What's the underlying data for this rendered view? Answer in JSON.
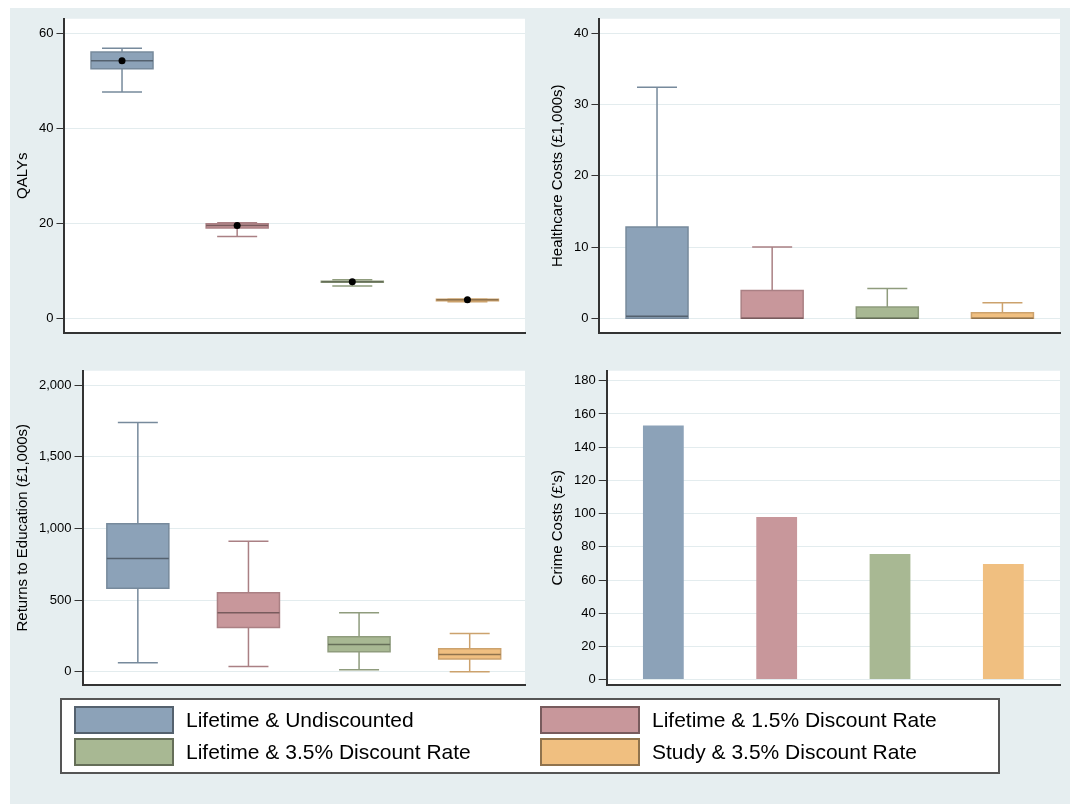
{
  "chart_data": [
    {
      "type": "box",
      "ylabel": "QALYs",
      "categories": [
        null,
        null,
        null,
        null
      ],
      "ylim": [
        -3,
        63
      ],
      "yticks": [
        0,
        20,
        40,
        60
      ],
      "grid": "y",
      "legend": "bottom",
      "marker": "circle",
      "series": [
        {
          "name": "Lifetime & Undiscounted",
          "color": "#8ca2b8",
          "boxes": [
            {
              "low": 47.6,
              "q1": 52.5,
              "median": 54.2,
              "q3": 56.0,
              "high": 56.8,
              "mean": 54.2
            },
            null,
            null,
            null
          ]
        },
        {
          "name": "Lifetime & 1.5% Discount Rate",
          "color": "#c8979b",
          "boxes": [
            null,
            {
              "low": 17.2,
              "q1": 19.0,
              "median": 19.5,
              "q3": 19.9,
              "high": 20.1,
              "mean": 19.5
            },
            null,
            null
          ]
        },
        {
          "name": "Lifetime & 3.5% Discount Rate",
          "color": "#a8b893",
          "boxes": [
            null,
            null,
            {
              "low": 6.8,
              "q1": 7.6,
              "median": 7.7,
              "q3": 7.8,
              "high": 8.1,
              "mean": 7.7
            },
            null
          ]
        },
        {
          "name": "Study & 3.5% Discount Rate",
          "color": "#f0bf80",
          "boxes": [
            null,
            null,
            null,
            {
              "low": 3.5,
              "q1": 3.7,
              "median": 3.9,
              "q3": 4.0,
              "high": 4.0,
              "mean": 3.9
            }
          ]
        }
      ]
    },
    {
      "type": "box",
      "ylabel": "Healthcare Costs (£1,000s)",
      "categories": [
        null,
        null,
        null,
        null
      ],
      "ylim": [
        -2,
        42
      ],
      "yticks": [
        0,
        10,
        20,
        30,
        40
      ],
      "grid": "y",
      "series": [
        {
          "color": "#8ca2b8",
          "boxes": [
            {
              "low": 0,
              "q1": 0,
              "median": 0.3,
              "q3": 12.8,
              "high": 32.4
            },
            null,
            null,
            null
          ]
        },
        {
          "color": "#c8979b",
          "boxes": [
            null,
            {
              "low": 0,
              "q1": 0,
              "median": 0,
              "q3": 3.9,
              "high": 10.0
            },
            null,
            null
          ]
        },
        {
          "color": "#a8b893",
          "boxes": [
            null,
            null,
            {
              "low": 0,
              "q1": 0,
              "median": 0,
              "q3": 1.6,
              "high": 4.2
            },
            null
          ]
        },
        {
          "color": "#f0bf80",
          "boxes": [
            null,
            null,
            null,
            {
              "low": 0,
              "q1": 0,
              "median": 0,
              "q3": 0.8,
              "high": 2.2
            }
          ]
        }
      ]
    },
    {
      "type": "box",
      "ylabel": "Returns to Education (£1,000s)",
      "categories": [
        null,
        null,
        null,
        null
      ],
      "ylim": [
        -90,
        2100
      ],
      "yticks": [
        0,
        500,
        {
          "value": 1000,
          "label": "1,000"
        },
        {
          "value": 1500,
          "label": "1,500"
        },
        {
          "value": 2000,
          "label": "2,000"
        }
      ],
      "grid": "y",
      "series": [
        {
          "color": "#8ca2b8",
          "boxes": [
            {
              "low": 62,
              "q1": 582,
              "median": 790,
              "q3": 1032,
              "high": 1739
            },
            null,
            null,
            null
          ]
        },
        {
          "color": "#c8979b",
          "boxes": [
            null,
            {
              "low": 36,
              "q1": 309,
              "median": 412,
              "q3": 551,
              "high": 910
            },
            null,
            null
          ]
        },
        {
          "color": "#a8b893",
          "boxes": [
            null,
            null,
            {
              "low": 14,
              "q1": 139,
              "median": 189,
              "q3": 244,
              "high": 412
            },
            null
          ]
        },
        {
          "color": "#f0bf80",
          "boxes": [
            null,
            null,
            null,
            {
              "low": 0,
              "q1": 89,
              "median": 120,
              "q3": 160,
              "high": 266
            }
          ]
        }
      ]
    },
    {
      "type": "bar",
      "ylabel": "Crime Costs (£'s)",
      "categories": [
        null,
        null,
        null,
        null
      ],
      "ylim": [
        -3,
        186
      ],
      "yticks": [
        0,
        20,
        40,
        60,
        80,
        100,
        120,
        140,
        160,
        180
      ],
      "grid": "y",
      "series": [
        {
          "color": "#8ca2b8",
          "values": [
            153,
            null,
            null,
            null
          ]
        },
        {
          "color": "#c8979b",
          "values": [
            null,
            98,
            null,
            null
          ]
        },
        {
          "color": "#a8b893",
          "values": [
            null,
            null,
            75.6,
            null
          ]
        },
        {
          "color": "#f0bf80",
          "values": [
            null,
            null,
            null,
            69.6
          ]
        }
      ]
    }
  ]
}
